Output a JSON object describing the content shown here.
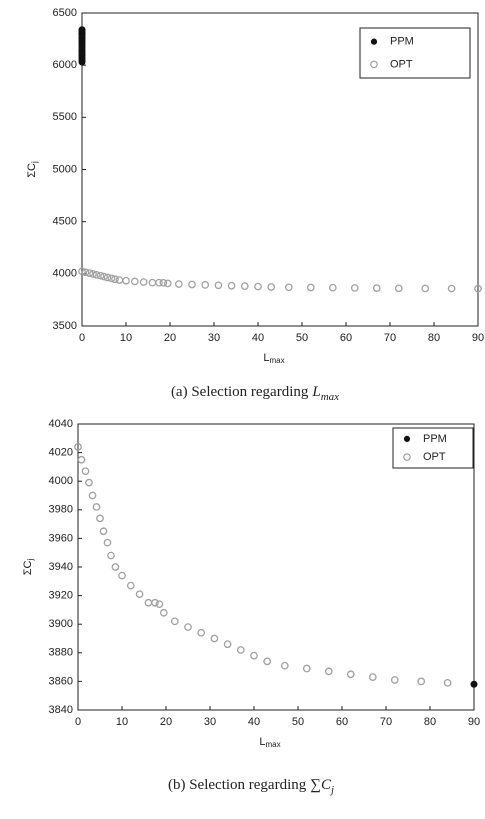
{
  "chart_data": [
    {
      "type": "scatter",
      "caption": "(a) Selection regarding",
      "caption_symbol": "L",
      "caption_sub": "max",
      "x_label": "L",
      "x_label_sub": "max",
      "y_label": "ΣC",
      "y_label_sub": "j",
      "xlim": [
        0,
        90
      ],
      "xticks": [
        0,
        10,
        20,
        30,
        40,
        50,
        60,
        70,
        80,
        90
      ],
      "ylim": [
        3500,
        6500
      ],
      "yticks": [
        3500,
        4000,
        4500,
        5000,
        5500,
        6000,
        6500
      ],
      "legend": "upper right",
      "series": [
        {
          "name": "PPM",
          "color": "#111111",
          "marker": "filled",
          "x": [
            0,
            0,
            0,
            0,
            0,
            0,
            0,
            0,
            0,
            0,
            0,
            0,
            0,
            0,
            0,
            0,
            0,
            0
          ],
          "values": [
            6030,
            6050,
            6070,
            6090,
            6110,
            6130,
            6150,
            6170,
            6190,
            6210,
            6230,
            6250,
            6270,
            6290,
            6300,
            6315,
            6330,
            6340
          ]
        },
        {
          "name": "OPT",
          "color": "#a0a0a0",
          "marker": "open",
          "x": [
            0,
            0.8,
            1.7,
            2.5,
            3.3,
            4.2,
            5,
            5.8,
            6.7,
            7.5,
            8.5,
            10,
            12,
            14,
            16,
            17.5,
            18.5,
            19.5,
            22,
            25,
            28,
            31,
            34,
            37,
            40,
            43,
            47,
            52,
            57,
            62,
            67,
            72,
            78,
            84,
            90
          ],
          "values": [
            4024,
            4015,
            4007,
            3999,
            3990,
            3982,
            3974,
            3965,
            3957,
            3948,
            3940,
            3934,
            3927,
            3921,
            3915,
            3915,
            3914,
            3908,
            3902,
            3898,
            3894,
            3890,
            3886,
            3882,
            3878,
            3874,
            3871,
            3869,
            3867,
            3865,
            3863,
            3861,
            3860,
            3859,
            3858
          ]
        }
      ]
    },
    {
      "type": "scatter",
      "caption": "(b) Selection regarding",
      "caption_symbol": "∑C",
      "caption_sub": "j",
      "x_label": "L",
      "x_label_sub": "max",
      "y_label": "ΣC",
      "y_label_sub": "j",
      "xlim": [
        0,
        90
      ],
      "xticks": [
        0,
        10,
        20,
        30,
        40,
        50,
        60,
        70,
        80,
        90
      ],
      "ylim": [
        3840,
        4040
      ],
      "yticks": [
        3840,
        3860,
        3880,
        3900,
        3920,
        3940,
        3960,
        3980,
        4000,
        4020,
        4040
      ],
      "legend": "upper right",
      "series": [
        {
          "name": "PPM",
          "color": "#111111",
          "marker": "filled",
          "x": [
            90
          ],
          "values": [
            3858
          ]
        },
        {
          "name": "OPT",
          "color": "#a0a0a0",
          "marker": "open",
          "x": [
            0,
            0.8,
            1.7,
            2.5,
            3.3,
            4.2,
            5,
            5.8,
            6.7,
            7.5,
            8.5,
            10,
            12,
            14,
            16,
            17.5,
            18.5,
            19.5,
            22,
            25,
            28,
            31,
            34,
            37,
            40,
            43,
            47,
            52,
            57,
            62,
            67,
            72,
            78,
            84
          ],
          "values": [
            4024,
            4015,
            4007,
            3999,
            3990,
            3982,
            3974,
            3965,
            3957,
            3948,
            3940,
            3934,
            3927,
            3921,
            3915,
            3915,
            3914,
            3908,
            3902,
            3898,
            3894,
            3890,
            3886,
            3882,
            3878,
            3874,
            3871,
            3869,
            3867,
            3865,
            3863,
            3861,
            3860,
            3859
          ]
        }
      ]
    }
  ]
}
